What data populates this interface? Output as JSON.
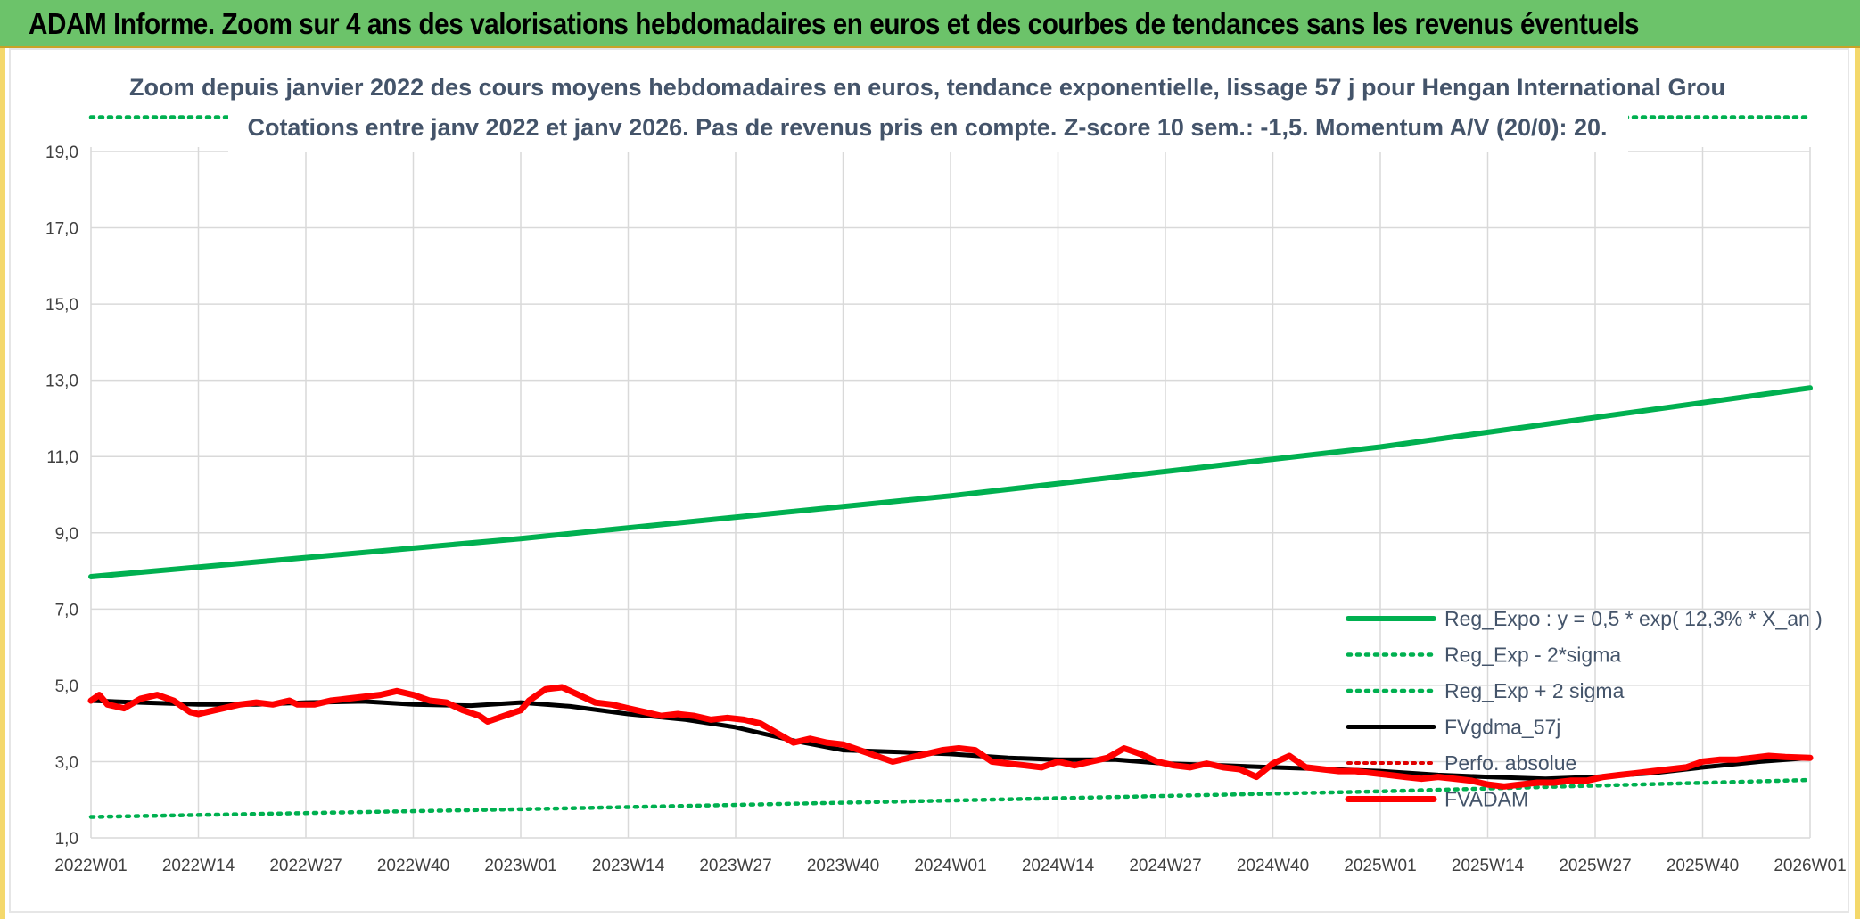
{
  "header": {
    "title": "ADAM Informe. Zoom sur 4 ans des valorisations hebdomadaires en euros et des courbes de tendances sans les revenus éventuels"
  },
  "colors": {
    "header_bg": "#6cc36a",
    "reg_expo": "#00b050",
    "sigma": "#00b050",
    "fvgdma": "#000000",
    "perfo": "#e00000",
    "fvadam": "#ff0000",
    "grid": "#d9d9d9"
  },
  "chart_data": {
    "type": "line",
    "title_line1": "Zoom depuis janvier 2022 des cours moyens hebdomadaires en euros, tendance exponentielle, lissage 57 j pour Hengan International Grou",
    "title_line2": "Cotations entre janv 2022 et janv 2026. Pas de revenus pris en compte. Z-score 10 sem.: -1,5. Momentum A/V (20/0): 20.",
    "x_tick_labels": [
      "2022W01",
      "2022W14",
      "2022W27",
      "2022W40",
      "2023W01",
      "2023W14",
      "2023W27",
      "2023W40",
      "2024W01",
      "2024W14",
      "2024W27",
      "2024W40",
      "2025W01",
      "2025W14",
      "2025W27",
      "2025W40",
      "2026W01"
    ],
    "y_tick_labels": [
      "1,0",
      "3,0",
      "5,0",
      "7,0",
      "9,0",
      "11,0",
      "13,0",
      "15,0",
      "17,0",
      "19,0"
    ],
    "ylim": [
      1,
      19
    ],
    "x_range_weeks": [
      0,
      208
    ],
    "series": [
      {
        "name": "Reg_Expo : y = 0,5 * exp( 12,3% *  X_an )",
        "style": "solid-thick",
        "points": [
          [
            0,
            7.85
          ],
          [
            52,
            8.85
          ],
          [
            104,
            9.97
          ],
          [
            156,
            11.25
          ],
          [
            208,
            12.8
          ]
        ]
      },
      {
        "name": "Reg_Exp - 2*sigma",
        "style": "dotted",
        "points": [
          [
            0,
            1.55
          ],
          [
            52,
            1.75
          ],
          [
            104,
            1.98
          ],
          [
            156,
            2.22
          ],
          [
            208,
            2.52
          ]
        ]
      },
      {
        "name": "Reg_Exp + 2 sigma",
        "style": "dotted",
        "points": [
          [
            0,
            19.9
          ],
          [
            208,
            19.9
          ]
        ]
      },
      {
        "name": "FVgdma_57j",
        "style": "solid",
        "points": [
          [
            0,
            4.6
          ],
          [
            6,
            4.55
          ],
          [
            13,
            4.5
          ],
          [
            20,
            4.5
          ],
          [
            26,
            4.55
          ],
          [
            33,
            4.58
          ],
          [
            39,
            4.5
          ],
          [
            46,
            4.47
          ],
          [
            52,
            4.55
          ],
          [
            58,
            4.45
          ],
          [
            65,
            4.25
          ],
          [
            72,
            4.1
          ],
          [
            78,
            3.9
          ],
          [
            85,
            3.55
          ],
          [
            91,
            3.3
          ],
          [
            98,
            3.25
          ],
          [
            104,
            3.2
          ],
          [
            111,
            3.1
          ],
          [
            117,
            3.05
          ],
          [
            124,
            3.05
          ],
          [
            130,
            2.95
          ],
          [
            137,
            2.9
          ],
          [
            143,
            2.85
          ],
          [
            150,
            2.8
          ],
          [
            156,
            2.75
          ],
          [
            163,
            2.65
          ],
          [
            169,
            2.6
          ],
          [
            176,
            2.55
          ],
          [
            182,
            2.6
          ],
          [
            189,
            2.7
          ],
          [
            195,
            2.85
          ],
          [
            202,
            3.0
          ],
          [
            208,
            3.1
          ]
        ]
      },
      {
        "name": "Perfo. absolue",
        "style": "dotted-red",
        "points": []
      },
      {
        "name": "FVADAM",
        "style": "solid-thick-red",
        "points": [
          [
            0,
            4.6
          ],
          [
            1,
            4.75
          ],
          [
            2,
            4.5
          ],
          [
            4,
            4.4
          ],
          [
            6,
            4.65
          ],
          [
            8,
            4.75
          ],
          [
            10,
            4.6
          ],
          [
            12,
            4.3
          ],
          [
            13,
            4.25
          ],
          [
            15,
            4.35
          ],
          [
            18,
            4.5
          ],
          [
            20,
            4.55
          ],
          [
            22,
            4.5
          ],
          [
            24,
            4.6
          ],
          [
            25,
            4.5
          ],
          [
            27,
            4.5
          ],
          [
            29,
            4.6
          ],
          [
            31,
            4.65
          ],
          [
            33,
            4.7
          ],
          [
            35,
            4.75
          ],
          [
            37,
            4.85
          ],
          [
            39,
            4.75
          ],
          [
            41,
            4.6
          ],
          [
            43,
            4.55
          ],
          [
            45,
            4.35
          ],
          [
            47,
            4.2
          ],
          [
            48,
            4.05
          ],
          [
            50,
            4.2
          ],
          [
            52,
            4.35
          ],
          [
            53,
            4.6
          ],
          [
            55,
            4.9
          ],
          [
            57,
            4.95
          ],
          [
            59,
            4.75
          ],
          [
            61,
            4.55
          ],
          [
            63,
            4.5
          ],
          [
            65,
            4.4
          ],
          [
            67,
            4.3
          ],
          [
            69,
            4.2
          ],
          [
            71,
            4.25
          ],
          [
            73,
            4.2
          ],
          [
            75,
            4.1
          ],
          [
            77,
            4.15
          ],
          [
            79,
            4.1
          ],
          [
            81,
            4.0
          ],
          [
            83,
            3.75
          ],
          [
            85,
            3.5
          ],
          [
            87,
            3.6
          ],
          [
            89,
            3.5
          ],
          [
            91,
            3.45
          ],
          [
            93,
            3.3
          ],
          [
            95,
            3.15
          ],
          [
            97,
            3.0
          ],
          [
            99,
            3.1
          ],
          [
            101,
            3.2
          ],
          [
            103,
            3.3
          ],
          [
            105,
            3.35
          ],
          [
            107,
            3.3
          ],
          [
            109,
            3.0
          ],
          [
            111,
            2.95
          ],
          [
            113,
            2.9
          ],
          [
            115,
            2.85
          ],
          [
            117,
            3.0
          ],
          [
            119,
            2.9
          ],
          [
            121,
            3.0
          ],
          [
            123,
            3.1
          ],
          [
            125,
            3.35
          ],
          [
            127,
            3.2
          ],
          [
            129,
            3.0
          ],
          [
            131,
            2.9
          ],
          [
            133,
            2.85
          ],
          [
            135,
            2.95
          ],
          [
            137,
            2.85
          ],
          [
            139,
            2.8
          ],
          [
            141,
            2.6
          ],
          [
            143,
            2.95
          ],
          [
            145,
            3.15
          ],
          [
            147,
            2.85
          ],
          [
            149,
            2.8
          ],
          [
            151,
            2.75
          ],
          [
            153,
            2.75
          ],
          [
            155,
            2.7
          ],
          [
            157,
            2.65
          ],
          [
            159,
            2.6
          ],
          [
            161,
            2.55
          ],
          [
            163,
            2.6
          ],
          [
            165,
            2.55
          ],
          [
            167,
            2.5
          ],
          [
            169,
            2.4
          ],
          [
            171,
            2.35
          ],
          [
            173,
            2.4
          ],
          [
            175,
            2.45
          ],
          [
            177,
            2.45
          ],
          [
            179,
            2.5
          ],
          [
            181,
            2.5
          ],
          [
            183,
            2.6
          ],
          [
            185,
            2.65
          ],
          [
            187,
            2.7
          ],
          [
            189,
            2.75
          ],
          [
            191,
            2.8
          ],
          [
            193,
            2.85
          ],
          [
            195,
            3.0
          ],
          [
            197,
            3.05
          ],
          [
            199,
            3.05
          ],
          [
            201,
            3.1
          ],
          [
            203,
            3.15
          ],
          [
            205,
            3.12
          ],
          [
            208,
            3.1
          ]
        ]
      }
    ]
  }
}
